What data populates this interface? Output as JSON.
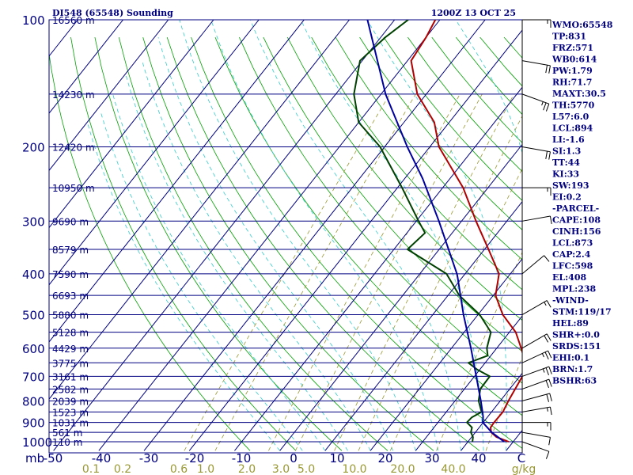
{
  "chart_data": {
    "type": "skew-t sounding",
    "title_left": "DI548 (65548) Sounding",
    "title_right": "1200Z 13 OCT 25",
    "pressure_levels": [
      100,
      200,
      300,
      400,
      500,
      600,
      700,
      800,
      900,
      1000
    ],
    "pressure_unit": "mb",
    "height_labels": [
      {
        "p": 100,
        "label": "16560 m"
      },
      {
        "p": 150,
        "label": "14230 m"
      },
      {
        "p": 200,
        "label": "12420 m"
      },
      {
        "p": 250,
        "label": "10950 m"
      },
      {
        "p": 300,
        "label": "9690 m"
      },
      {
        "p": 350,
        "label": "8579 m"
      },
      {
        "p": 400,
        "label": "7590 m"
      },
      {
        "p": 450,
        "label": "6693 m"
      },
      {
        "p": 500,
        "label": "5880 m"
      },
      {
        "p": 550,
        "label": "5128 m"
      },
      {
        "p": 600,
        "label": "4429 m"
      },
      {
        "p": 650,
        "label": "3775 m"
      },
      {
        "p": 700,
        "label": "3161 m"
      },
      {
        "p": 750,
        "label": "2582 m"
      },
      {
        "p": 800,
        "label": "2039 m"
      },
      {
        "p": 850,
        "label": "1523 m"
      },
      {
        "p": 900,
        "label": "1031 m"
      },
      {
        "p": 950,
        "label": "561 m"
      },
      {
        "p": 1000,
        "label": "110 m"
      }
    ],
    "temp_ticks": [
      "-50",
      "-40",
      "-30",
      "-20",
      "-10",
      "0",
      "10",
      "20",
      "30",
      "40",
      "C"
    ],
    "mixing_ratio_ticks": [
      "0.1",
      "0.2",
      "0.6",
      "1.0",
      "2.0",
      "3.0",
      "5.0",
      "10.0",
      "20.0",
      "40.0",
      "g/kg"
    ],
    "series": [
      {
        "name": "Temperature",
        "color": "#b00000",
        "points": [
          [
            1000,
            29
          ],
          [
            975,
            25.5
          ],
          [
            950,
            23.5
          ],
          [
            925,
            22.5
          ],
          [
            900,
            22.4
          ],
          [
            850,
            22.5
          ],
          [
            800,
            21.8
          ],
          [
            700,
            20.6
          ],
          [
            680,
            21.6
          ],
          [
            650,
            18.9
          ],
          [
            600,
            15.4
          ],
          [
            550,
            11.4
          ],
          [
            500,
            5.5
          ],
          [
            450,
            0.5
          ],
          [
            400,
            -2.5
          ],
          [
            350,
            -9.1
          ],
          [
            300,
            -16.8
          ],
          [
            250,
            -25.5
          ],
          [
            200,
            -38
          ],
          [
            175,
            -43.3
          ],
          [
            150,
            -52
          ],
          [
            125,
            -59.2
          ],
          [
            110,
            -60
          ],
          [
            100,
            -61
          ]
        ]
      },
      {
        "name": "Dewpoint",
        "color": "#004000",
        "points": [
          [
            1000,
            21
          ],
          [
            975,
            20.3
          ],
          [
            950,
            19
          ],
          [
            925,
            18.4
          ],
          [
            900,
            16.4
          ],
          [
            875,
            16.6
          ],
          [
            850,
            17.8
          ],
          [
            800,
            15.2
          ],
          [
            750,
            13.5
          ],
          [
            700,
            13.4
          ],
          [
            675,
            9.5
          ],
          [
            650,
            6.3
          ],
          [
            625,
            9.3
          ],
          [
            600,
            7.8
          ],
          [
            550,
            5.9
          ],
          [
            500,
            0.4
          ],
          [
            450,
            -7.5
          ],
          [
            400,
            -14.1
          ],
          [
            350,
            -27
          ],
          [
            320,
            -26
          ],
          [
            300,
            -29.5
          ],
          [
            250,
            -39
          ],
          [
            200,
            -51
          ],
          [
            175,
            -60
          ],
          [
            150,
            -66
          ],
          [
            125,
            -70.5
          ],
          [
            110,
            -69
          ],
          [
            100,
            -67
          ]
        ]
      },
      {
        "name": "Parcel",
        "color": "#0000a0",
        "points": [
          [
            1000,
            28
          ],
          [
            950,
            23.6
          ],
          [
            900,
            19.9
          ],
          [
            873,
            19
          ],
          [
            850,
            18
          ],
          [
            800,
            15.7
          ],
          [
            700,
            10.4
          ],
          [
            600,
            4.3
          ],
          [
            500,
            -3.2
          ],
          [
            408,
            -11
          ],
          [
            400,
            -11.8
          ],
          [
            300,
            -25
          ],
          [
            238,
            -36
          ],
          [
            200,
            -45
          ],
          [
            150,
            -59
          ],
          [
            100,
            -76
          ]
        ]
      }
    ],
    "winds": [
      {
        "p": 1000,
        "dir": 110,
        "spd": 10
      },
      {
        "p": 950,
        "dir": 100,
        "spd": 10
      },
      {
        "p": 900,
        "dir": 90,
        "spd": 15
      },
      {
        "p": 850,
        "dir": 80,
        "spd": 15
      },
      {
        "p": 800,
        "dir": 75,
        "spd": 20
      },
      {
        "p": 750,
        "dir": 70,
        "spd": 20
      },
      {
        "p": 700,
        "dir": 70,
        "spd": 25
      },
      {
        "p": 650,
        "dir": 65,
        "spd": 25
      },
      {
        "p": 600,
        "dir": 60,
        "spd": 20
      },
      {
        "p": 500,
        "dir": 60,
        "spd": 15
      },
      {
        "p": 400,
        "dir": 50,
        "spd": 10
      },
      {
        "p": 300,
        "dir": 80,
        "spd": 10
      },
      {
        "p": 250,
        "dir": 90,
        "spd": 15
      },
      {
        "p": 200,
        "dir": 100,
        "spd": 20
      },
      {
        "p": 150,
        "dir": 110,
        "spd": 25
      },
      {
        "p": 125,
        "dir": 100,
        "spd": 20
      },
      {
        "p": 100,
        "dir": 90,
        "spd": 15
      }
    ],
    "indices": [
      "WMO:65548",
      "TP:831",
      "FRZ:571",
      "WB0:614",
      "PW:1.79",
      "RH:71.7",
      "MAXT:30.5",
      "TH:5770",
      "L57:6.0",
      "LCL:894",
      "LI:-1.6",
      "SI:1.3",
      "TT:44",
      "KI:33",
      "SW:193",
      "EI:0.2",
      "-PARCEL-",
      "CAPE:108",
      "CINH:156",
      "LCL:873",
      "CAP:2.4",
      "LFC:598",
      "EL:408",
      "MPL:238",
      "-WIND-",
      "STM:119/17",
      "HEL:89",
      "SHR+:0.0",
      "SRDS:151",
      "EHI:0.1",
      "BRN:1.7",
      "BSHR:63"
    ],
    "colors": {
      "isobar": "#000080",
      "isotherm": "#000080",
      "dry_adiabat": "#00a000",
      "moist_adiabat": "#33cccc",
      "mixing_ratio": "#999933",
      "text": "#000080",
      "tick_label_mixing": "#999933"
    }
  }
}
